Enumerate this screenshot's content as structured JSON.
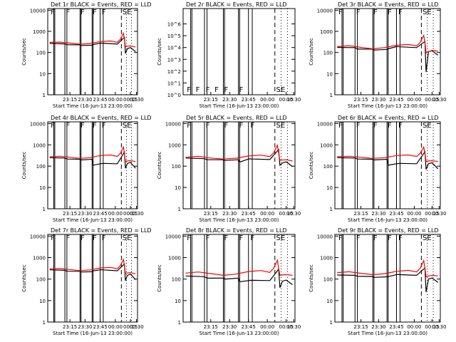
{
  "figure": {
    "background": "#ffffff",
    "axis_color": "#000000",
    "events_color": "#000000",
    "lld_color": "#ff0000"
  },
  "chart_data": [
    {
      "type": "line",
      "title": "Det 1r BLACK = Events, RED = LLD",
      "xlabel": "Start Time (16-Jun-13 23:00:00)",
      "ylabel": "Counts/sec",
      "ylim": [
        1,
        12000
      ],
      "yscale": "log",
      "yticks": [
        "1",
        "10",
        "100",
        "1000",
        "10000"
      ],
      "xticks": [
        "23:15",
        "23:30",
        "23:45",
        "00:00",
        "00:15",
        "00:30"
      ],
      "flags": [
        "F",
        "F",
        "F",
        "F",
        "F",
        "SE"
      ],
      "series": [
        {
          "name": "Events",
          "color": "#000000",
          "t": [
            -5,
            10,
            12,
            25,
            26,
            37,
            38,
            45,
            46,
            48,
            62,
            69,
            70,
            72,
            75,
            80
          ],
          "v": [
            270,
            255,
            232,
            230,
            215,
            220,
            240,
            275,
            278,
            275,
            250,
            520,
            90,
            150,
            172,
            110
          ]
        },
        {
          "name": "LLD",
          "color": "#ff0000",
          "t": [
            -5,
            5,
            15,
            25,
            35,
            45,
            55,
            62,
            65,
            68,
            69,
            70,
            71,
            75,
            80
          ],
          "v": [
            300,
            310,
            278,
            248,
            265,
            330,
            350,
            305,
            420,
            820,
            420,
            190,
            195,
            205,
            180
          ]
        }
      ]
    },
    {
      "type": "line",
      "title": "Det 2r BLACK = Events, RED = LLD",
      "xlabel": "Start Time (16-Jun-13 23:00:00)",
      "ylabel": "Counts/sec",
      "ylim": [
        1,
        20000000
      ],
      "yscale": "log",
      "yticks": [
        "10^0",
        "10^1",
        "10^2",
        "10^3",
        "10^4",
        "10^5",
        "10^6"
      ],
      "xticks": [
        "23:15",
        "23:30",
        "23:45",
        "00:00",
        "00:15",
        "00:30"
      ],
      "flags": [
        "F",
        "F",
        "F",
        "F",
        "F",
        "F",
        "SE"
      ],
      "series": []
    },
    {
      "type": "line",
      "title": "Det 3r BLACK = Events, RED = LLD",
      "xlabel": "Start Time (16-Jun-13 23:00:00)",
      "ylabel": "Counts/sec",
      "ylim": [
        1,
        12000
      ],
      "yscale": "log",
      "yticks": [
        "1",
        "10",
        "100",
        "1000",
        "10000"
      ],
      "xticks": [
        "23:15",
        "23:30",
        "23:45",
        "00:00",
        "00:15",
        "00:30"
      ],
      "flags": [
        "F",
        "F",
        "F",
        "F",
        "F",
        "SE"
      ],
      "series": [
        {
          "name": "Events",
          "color": "#000000",
          "t": [
            -5,
            10,
            12,
            25,
            26,
            37,
            38,
            45,
            46,
            48,
            62,
            69,
            70,
            72,
            75,
            80
          ],
          "v": [
            175,
            170,
            145,
            145,
            130,
            140,
            150,
            190,
            192,
            185,
            170,
            330,
            12,
            110,
            120,
            75
          ]
        },
        {
          "name": "LLD",
          "color": "#ff0000",
          "t": [
            -5,
            5,
            15,
            25,
            35,
            45,
            55,
            62,
            65,
            68,
            69,
            70,
            71,
            75,
            80
          ],
          "v": [
            190,
            210,
            175,
            150,
            170,
            220,
            240,
            205,
            300,
            650,
            300,
            95,
            105,
            125,
            115
          ]
        }
      ]
    },
    {
      "type": "line",
      "title": "Det 4r BLACK = Events, RED = LLD",
      "xlabel": "Start Time (16-Jun-13 23:00:00)",
      "ylabel": "Counts/sec",
      "ylim": [
        1,
        12000
      ],
      "yscale": "log",
      "yticks": [
        "1",
        "10",
        "100",
        "1000",
        "10000"
      ],
      "xticks": [
        "23:15",
        "23:30",
        "23:45",
        "00:00",
        "00:15",
        "00:30"
      ],
      "flags": [
        "F",
        "F",
        "F",
        "F",
        "F",
        "SE"
      ],
      "series": [
        {
          "name": "Events",
          "color": "#000000",
          "t": [
            -5,
            10,
            12,
            25,
            26,
            37,
            38,
            45,
            46,
            48,
            62,
            69,
            70,
            72,
            75,
            80
          ],
          "v": [
            250,
            240,
            215,
            210,
            195,
            210,
            110,
            130,
            132,
            135,
            130,
            460,
            80,
            135,
            150,
            80
          ]
        },
        {
          "name": "LLD",
          "color": "#ff0000",
          "t": [
            -5,
            5,
            15,
            25,
            35,
            45,
            55,
            62,
            65,
            68,
            69,
            70,
            71,
            75,
            80
          ],
          "v": [
            275,
            290,
            262,
            232,
            250,
            315,
            335,
            285,
            400,
            780,
            400,
            165,
            172,
            180,
            165
          ]
        }
      ]
    },
    {
      "type": "line",
      "title": "Det 5r BLACK = Events, RED = LLD",
      "xlabel": "Start Time (16-Jun-13 23:00:00)",
      "ylabel": "Counts/sec",
      "ylim": [
        1,
        12000
      ],
      "yscale": "log",
      "yticks": [
        "1",
        "10",
        "100",
        "1000",
        "10000"
      ],
      "xticks": [
        "23:15",
        "23:30",
        "23:45",
        "00:00",
        "00:15",
        "00:30"
      ],
      "flags": [
        "F",
        "F",
        "F",
        "F",
        "F",
        "SE"
      ],
      "series": [
        {
          "name": "Events",
          "color": "#000000",
          "t": [
            -5,
            10,
            12,
            25,
            26,
            37,
            38,
            45,
            46,
            48,
            62,
            69,
            70,
            72,
            75,
            80
          ],
          "v": [
            240,
            225,
            200,
            200,
            185,
            200,
            155,
            215,
            220,
            215,
            205,
            600,
            110,
            140,
            160,
            95
          ]
        },
        {
          "name": "LLD",
          "color": "#ff0000",
          "t": [
            -5,
            5,
            15,
            25,
            35,
            45,
            55,
            62,
            65,
            68,
            69,
            70,
            71,
            75,
            80
          ],
          "v": [
            260,
            290,
            240,
            215,
            235,
            300,
            330,
            280,
            420,
            950,
            420,
            185,
            190,
            200,
            175
          ]
        }
      ]
    },
    {
      "type": "line",
      "title": "Det 6r BLACK = Events, RED = LLD",
      "xlabel": "Start Time (16-Jun-13 23:00:00)",
      "ylabel": "Counts/sec",
      "ylim": [
        1,
        12000
      ],
      "yscale": "log",
      "yticks": [
        "1",
        "10",
        "100",
        "1000",
        "10000"
      ],
      "xticks": [
        "23:15",
        "23:30",
        "23:45",
        "00:00",
        "00:15",
        "00:30"
      ],
      "flags": [
        "F",
        "F",
        "F",
        "F",
        "F",
        "SE"
      ],
      "series": [
        {
          "name": "Events",
          "color": "#000000",
          "t": [
            -5,
            10,
            12,
            25,
            26,
            37,
            38,
            45,
            46,
            48,
            62,
            69,
            70,
            72,
            75,
            80
          ],
          "v": [
            250,
            240,
            215,
            210,
            195,
            210,
            110,
            130,
            132,
            135,
            130,
            470,
            70,
            130,
            145,
            75
          ]
        },
        {
          "name": "LLD",
          "color": "#ff0000",
          "t": [
            -5,
            5,
            15,
            25,
            35,
            45,
            55,
            62,
            65,
            68,
            69,
            70,
            71,
            75,
            80
          ],
          "v": [
            275,
            290,
            262,
            232,
            250,
            315,
            335,
            285,
            400,
            780,
            400,
            165,
            172,
            180,
            165
          ]
        }
      ]
    },
    {
      "type": "line",
      "title": "Det 7r BLACK = Events, RED = LLD",
      "xlabel": "Start Time (16-Jun-13 23:00:00)",
      "ylabel": "Counts/sec",
      "ylim": [
        1,
        12000
      ],
      "yscale": "log",
      "yticks": [
        "1",
        "10",
        "100",
        "1000",
        "10000"
      ],
      "xticks": [
        "23:15",
        "23:30",
        "23:45",
        "00:00",
        "00:15",
        "00:30"
      ],
      "flags": [
        "F",
        "F",
        "F",
        "F",
        "F",
        "SE"
      ],
      "series": [
        {
          "name": "Events",
          "color": "#000000",
          "t": [
            -5,
            10,
            12,
            25,
            26,
            37,
            38,
            45,
            46,
            48,
            62,
            69,
            70,
            72,
            75,
            80
          ],
          "v": [
            270,
            255,
            232,
            230,
            215,
            220,
            240,
            270,
            272,
            268,
            245,
            500,
            85,
            150,
            170,
            95
          ]
        },
        {
          "name": "LLD",
          "color": "#ff0000",
          "t": [
            -5,
            5,
            15,
            25,
            35,
            45,
            55,
            62,
            65,
            68,
            69,
            70,
            71,
            75,
            80
          ],
          "v": [
            300,
            310,
            278,
            248,
            265,
            330,
            350,
            305,
            420,
            820,
            420,
            185,
            190,
            200,
            175
          ]
        }
      ]
    },
    {
      "type": "line",
      "title": "Det 8r BLACK = Events, RED = LLD",
      "xlabel": "Start Time (16-Jun-13 23:00:00)",
      "ylabel": "Counts/sec",
      "ylim": [
        1,
        12000
      ],
      "yscale": "log",
      "yticks": [
        "1",
        "10",
        "100",
        "1000",
        "10000"
      ],
      "xticks": [
        "23:15",
        "23:30",
        "23:45",
        "00:00",
        "00:15",
        "00:30"
      ],
      "flags": [
        "F",
        "F",
        "F",
        "F",
        "F",
        "SE"
      ],
      "series": [
        {
          "name": "Events",
          "color": "#000000",
          "t": [
            -5,
            10,
            12,
            25,
            26,
            37,
            38,
            45,
            46,
            48,
            62,
            69,
            70,
            72,
            75,
            80
          ],
          "v": [
            140,
            130,
            110,
            110,
            100,
            110,
            75,
            85,
            87,
            88,
            85,
            290,
            40,
            80,
            90,
            55
          ]
        },
        {
          "name": "LLD",
          "color": "#ff0000",
          "t": [
            -5,
            5,
            15,
            25,
            35,
            45,
            55,
            62,
            65,
            68,
            69,
            70,
            71,
            75,
            80
          ],
          "v": [
            190,
            215,
            180,
            150,
            170,
            225,
            250,
            205,
            320,
            750,
            320,
            150,
            155,
            160,
            150
          ]
        }
      ]
    },
    {
      "type": "line",
      "title": "Det 9r BLACK = Events, RED = LLD",
      "xlabel": "Start Time (16-Jun-13 23:00:00)",
      "ylabel": "Counts/sec",
      "ylim": [
        1,
        12000
      ],
      "yscale": "log",
      "yticks": [
        "1",
        "10",
        "100",
        "1000",
        "10000"
      ],
      "xticks": [
        "23:15",
        "23:30",
        "23:45",
        "00:00",
        "00:15",
        "00:30"
      ],
      "flags": [
        "F",
        "F",
        "F",
        "F",
        "F",
        "SE"
      ],
      "series": [
        {
          "name": "Events",
          "color": "#000000",
          "t": [
            -5,
            10,
            12,
            25,
            26,
            37,
            38,
            45,
            46,
            48,
            62,
            69,
            70,
            72,
            75,
            80
          ],
          "v": [
            155,
            150,
            135,
            132,
            120,
            128,
            130,
            162,
            165,
            160,
            150,
            330,
            25,
            100,
            112,
            70
          ]
        },
        {
          "name": "LLD",
          "color": "#ff0000",
          "t": [
            -5,
            5,
            15,
            25,
            35,
            45,
            55,
            62,
            65,
            68,
            69,
            70,
            71,
            75,
            80
          ],
          "v": [
            200,
            220,
            185,
            160,
            178,
            230,
            255,
            215,
            320,
            720,
            320,
            130,
            135,
            150,
            140
          ]
        }
      ]
    }
  ]
}
